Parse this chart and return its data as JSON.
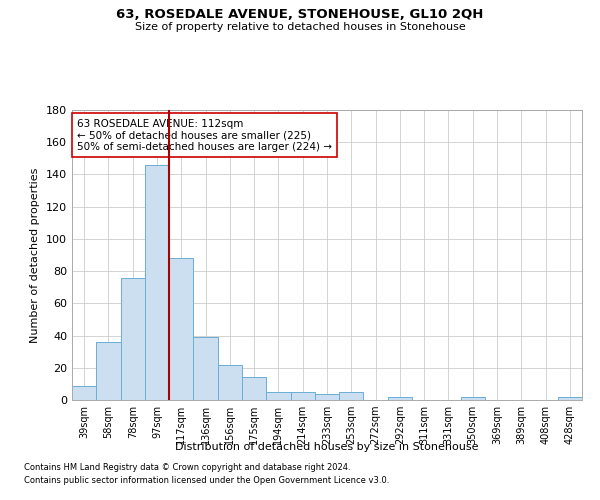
{
  "title": "63, ROSEDALE AVENUE, STONEHOUSE, GL10 2QH",
  "subtitle": "Size of property relative to detached houses in Stonehouse",
  "xlabel": "Distribution of detached houses by size in Stonehouse",
  "ylabel": "Number of detached properties",
  "footnote1": "Contains HM Land Registry data © Crown copyright and database right 2024.",
  "footnote2": "Contains public sector information licensed under the Open Government Licence v3.0.",
  "bar_color": "#ccdff0",
  "bar_edge_color": "#6aaed6",
  "vline_color": "#aa0000",
  "vline_x_idx": 4,
  "annotation_text": "63 ROSEDALE AVENUE: 112sqm\n← 50% of detached houses are smaller (225)\n50% of semi-detached houses are larger (224) →",
  "annotation_box_color": "#ffffff",
  "annotation_box_edge": "#cc0000",
  "categories": [
    "39sqm",
    "58sqm",
    "78sqm",
    "97sqm",
    "117sqm",
    "136sqm",
    "156sqm",
    "175sqm",
    "194sqm",
    "214sqm",
    "233sqm",
    "253sqm",
    "272sqm",
    "292sqm",
    "311sqm",
    "331sqm",
    "350sqm",
    "369sqm",
    "389sqm",
    "408sqm",
    "428sqm"
  ],
  "values": [
    9,
    36,
    76,
    146,
    88,
    39,
    22,
    14,
    5,
    5,
    4,
    5,
    0,
    2,
    0,
    0,
    2,
    0,
    0,
    0,
    2
  ],
  "ylim": [
    0,
    180
  ],
  "yticks": [
    0,
    20,
    40,
    60,
    80,
    100,
    120,
    140,
    160,
    180
  ],
  "background_color": "#ffffff",
  "grid_color": "#cccccc"
}
